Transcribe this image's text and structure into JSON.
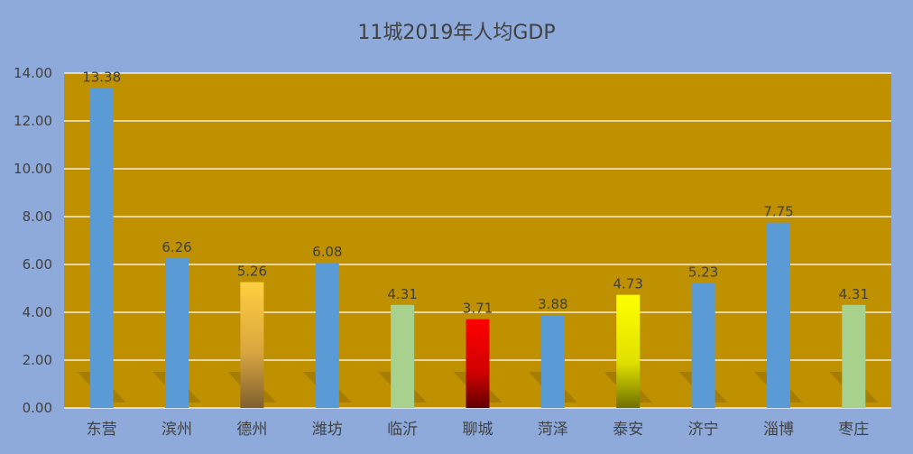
{
  "chart_data": {
    "type": "bar",
    "title": "11城2019年人均GDP",
    "xlabel": "",
    "ylabel": "",
    "ylim": [
      0,
      14
    ],
    "yticks": [
      "0.00",
      "2.00",
      "4.00",
      "6.00",
      "8.00",
      "10.00",
      "12.00",
      "14.00"
    ],
    "grid": true,
    "legend": "none",
    "categories": [
      "东营",
      "滨州",
      "德州",
      "潍坊",
      "临沂",
      "聊城",
      "菏泽",
      "泰安",
      "济宁",
      "淄博",
      "枣庄"
    ],
    "values": [
      13.38,
      6.26,
      5.26,
      6.08,
      4.31,
      3.71,
      3.88,
      4.73,
      5.23,
      7.75,
      4.31
    ],
    "data_labels": [
      "13.38",
      "6.26",
      "5.26",
      "6.08",
      "4.31",
      "3.71",
      "3.88",
      "4.73",
      "5.23",
      "7.75",
      "4.31"
    ],
    "colors": {
      "page_background": "#8eaadb",
      "plot_background": "#bf9000",
      "gridline": "#ffffff",
      "bars": [
        "#5b9bd5",
        "#5b9bd5",
        "#ffc000-gradient",
        "#5b9bd5",
        "#a9d18e",
        "#c00000-gradient",
        "#5b9bd5",
        "#ffff00-gradient",
        "#5b9bd5",
        "#5b9bd5",
        "#a9d18e"
      ]
    }
  }
}
